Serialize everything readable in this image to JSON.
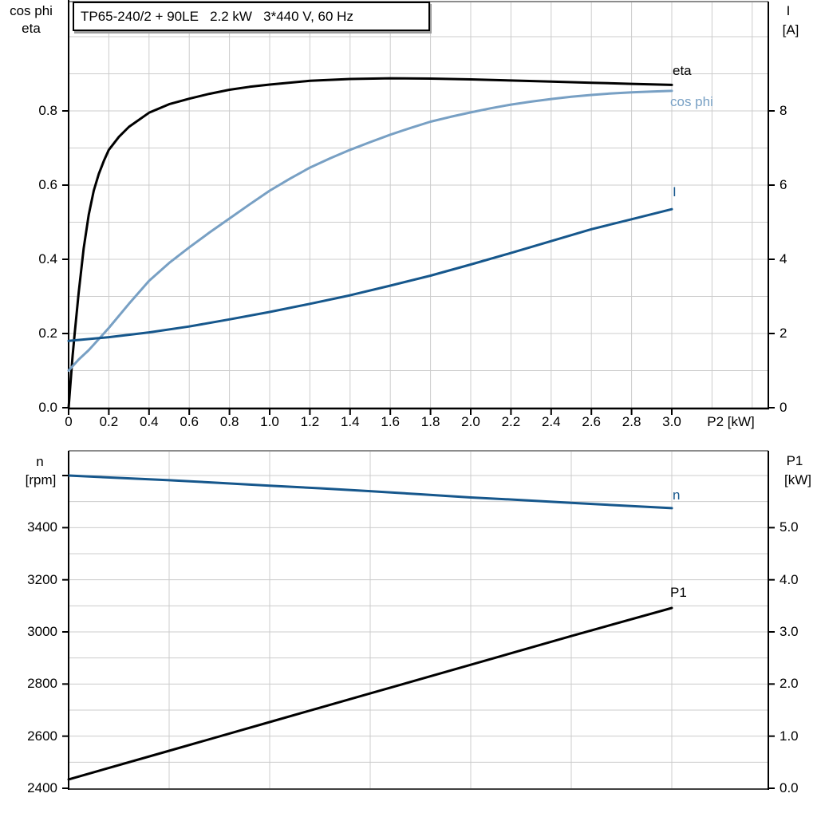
{
  "panel": {
    "background": "#ffffff"
  },
  "colors": {
    "black": "#000000",
    "dark_blue": "#16578c",
    "light_blue": "#78a0c4",
    "grid": "#cccccc",
    "border_gray": "#8c8c8c",
    "axis": "#000000"
  },
  "title_box": {
    "text": "TP65-240/2 + 90LE   2.2 kW   3*440 V, 60 Hz"
  },
  "chart_data": [
    {
      "type": "line",
      "title": "TP65-240/2 + 90LE   2.2 kW   3*440 V, 60 Hz",
      "x_axis": {
        "label": "P2 [kW]",
        "min": 0,
        "max": 3.48,
        "tick_values": [
          0,
          0.2,
          0.4,
          0.6,
          0.8,
          1.0,
          1.2,
          1.4,
          1.6,
          1.8,
          2.0,
          2.2,
          2.4,
          2.6,
          2.8,
          3.0
        ],
        "tick_labels": [
          "0",
          "0.2",
          "0.4",
          "0.6",
          "0.8",
          "1.0",
          "1.2",
          "1.4",
          "1.6",
          "1.8",
          "2.0",
          "2.2",
          "2.4",
          "2.6",
          "2.8",
          "3.0"
        ]
      },
      "y_left": {
        "title_lines": [
          "cos phi",
          "eta"
        ],
        "min": 0,
        "max": 1.1,
        "tick_values": [
          0,
          0.2,
          0.4,
          0.6,
          0.8
        ],
        "tick_labels": [
          "0.0",
          "0.2",
          "0.4",
          "0.6",
          "0.8"
        ]
      },
      "y_right": {
        "title_lines": [
          "I",
          "[A]"
        ],
        "min": 0,
        "max": 11,
        "tick_values": [
          0,
          2,
          4,
          6,
          8
        ],
        "tick_labels": [
          "0",
          "2",
          "4",
          "6",
          "8"
        ]
      },
      "grid": {
        "x_min": 0.2,
        "x_max": 3.4,
        "x_step": 0.2,
        "y_min": 0.1,
        "y_max": 1.0,
        "y_step": 0.1
      },
      "series": [
        {
          "name": "eta",
          "label": "eta",
          "axis": "left",
          "color_key": "black",
          "x": [
            0,
            0.01,
            0.02,
            0.03,
            0.05,
            0.075,
            0.1,
            0.125,
            0.15,
            0.175,
            0.2,
            0.25,
            0.3,
            0.4,
            0.5,
            0.6,
            0.7,
            0.8,
            0.9,
            1.0,
            1.2,
            1.4,
            1.6,
            1.8,
            2.0,
            2.2,
            2.4,
            2.6,
            2.8,
            3.0
          ],
          "y": [
            0,
            0.07,
            0.14,
            0.2,
            0.31,
            0.43,
            0.52,
            0.585,
            0.63,
            0.665,
            0.695,
            0.73,
            0.757,
            0.795,
            0.818,
            0.833,
            0.846,
            0.857,
            0.865,
            0.871,
            0.881,
            0.886,
            0.888,
            0.887,
            0.885,
            0.882,
            0.879,
            0.876,
            0.873,
            0.87
          ]
        },
        {
          "name": "cos phi",
          "label": "cos phi",
          "axis": "left",
          "color_key": "light_blue",
          "x": [
            0,
            0.05,
            0.1,
            0.15,
            0.2,
            0.3,
            0.4,
            0.5,
            0.6,
            0.7,
            0.8,
            0.9,
            1.0,
            1.1,
            1.2,
            1.3,
            1.4,
            1.5,
            1.6,
            1.7,
            1.8,
            1.9,
            2.0,
            2.1,
            2.2,
            2.3,
            2.4,
            2.5,
            2.6,
            2.7,
            2.8,
            2.9,
            3.0
          ],
          "y": [
            0.1,
            0.13,
            0.155,
            0.185,
            0.215,
            0.28,
            0.342,
            0.39,
            0.432,
            0.472,
            0.51,
            0.548,
            0.585,
            0.617,
            0.647,
            0.672,
            0.695,
            0.716,
            0.736,
            0.754,
            0.771,
            0.784,
            0.796,
            0.807,
            0.817,
            0.825,
            0.832,
            0.838,
            0.843,
            0.847,
            0.85,
            0.852,
            0.854
          ]
        },
        {
          "name": "I",
          "label": "I",
          "axis": "right",
          "color_key": "dark_blue",
          "x": [
            0,
            0.2,
            0.4,
            0.6,
            0.8,
            1.0,
            1.2,
            1.4,
            1.6,
            1.8,
            2.0,
            2.2,
            2.4,
            2.6,
            2.8,
            3.0
          ],
          "y": [
            1.8,
            1.9,
            2.03,
            2.19,
            2.38,
            2.58,
            2.8,
            3.03,
            3.29,
            3.56,
            3.86,
            4.17,
            4.49,
            4.81,
            5.08,
            5.35
          ]
        }
      ]
    },
    {
      "type": "line",
      "title": "",
      "x_axis": {
        "label": "",
        "min": 0,
        "max": 3.48,
        "tick_values": [],
        "tick_labels": []
      },
      "y_left": {
        "title_lines": [
          "n",
          "[rpm]"
        ],
        "min": 2400,
        "max": 3700,
        "tick_values": [
          2400,
          2600,
          2800,
          3000,
          3200,
          3400,
          3600
        ],
        "tick_labels": [
          "2400",
          "2600",
          "2800",
          "3000",
          "3200",
          "3400",
          ""
        ]
      },
      "y_right": {
        "title_lines": [
          "P1",
          "[kW]"
        ],
        "min": 0,
        "max": 6.5,
        "tick_values": [
          0,
          1,
          2,
          3,
          4,
          5
        ],
        "tick_labels": [
          "0.0",
          "1.0",
          "2.0",
          "3.0",
          "4.0",
          "5.0"
        ]
      },
      "grid": {
        "x_min": 0.5,
        "x_max": 3.0,
        "x_step": 0.5,
        "y_min": 2500,
        "y_max": 3600,
        "y_step": 100
      },
      "series": [
        {
          "name": "n",
          "label": "n",
          "axis": "left",
          "color_key": "dark_blue",
          "x": [
            0,
            0.25,
            0.5,
            0.75,
            1.0,
            1.25,
            1.5,
            1.75,
            2.0,
            2.25,
            2.5,
            2.75,
            3.0
          ],
          "y": [
            3600,
            3591,
            3582,
            3572,
            3561,
            3551,
            3540,
            3528,
            3516,
            3506,
            3495,
            3485,
            3475
          ]
        },
        {
          "name": "P1",
          "label": "P1",
          "axis": "right",
          "color_key": "black",
          "x": [
            0,
            0.5,
            1.0,
            1.5,
            2.0,
            2.5,
            3.0
          ],
          "y": [
            0.17,
            0.72,
            1.27,
            1.82,
            2.37,
            2.92,
            3.46
          ]
        }
      ]
    }
  ]
}
